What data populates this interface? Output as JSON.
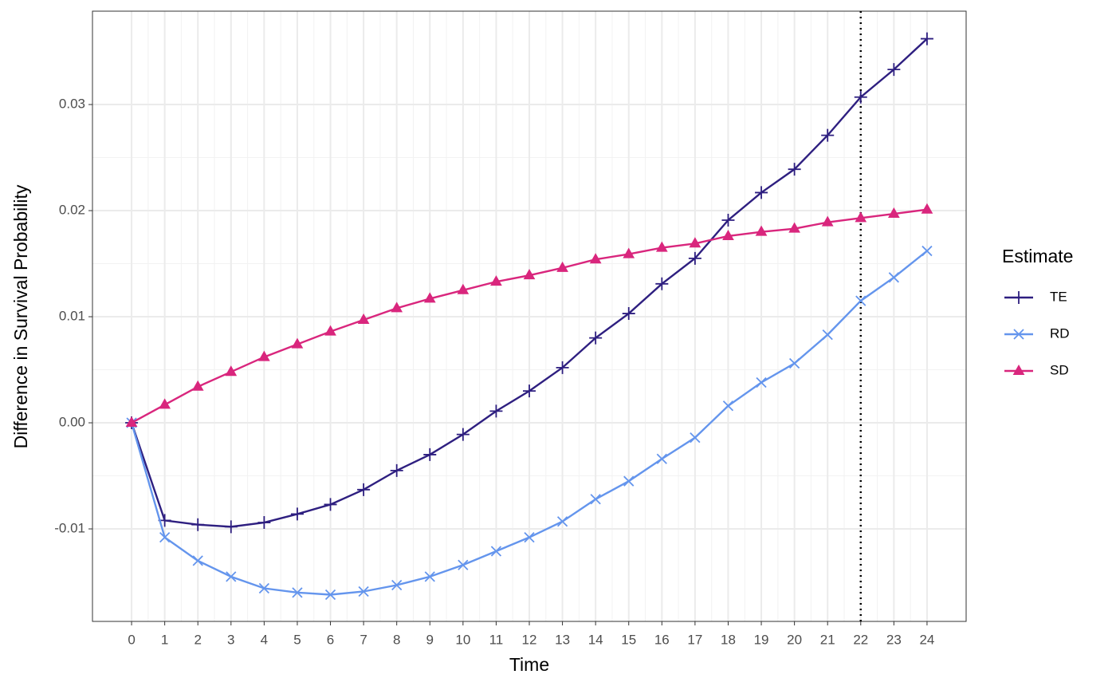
{
  "chart_data": {
    "type": "line",
    "x_label": "Time",
    "y_label": "Difference in Survival Probability",
    "x": [
      0,
      1,
      2,
      3,
      4,
      5,
      6,
      7,
      8,
      9,
      10,
      11,
      12,
      13,
      14,
      15,
      16,
      17,
      18,
      19,
      20,
      21,
      22,
      23,
      24
    ],
    "series": [
      {
        "name": "TE",
        "color": "#2e1f80",
        "shape": "plus",
        "values": [
          0,
          -0.0092,
          -0.0096,
          -0.0098,
          -0.0094,
          -0.0086,
          -0.0077,
          -0.0063,
          -0.0045,
          -0.003,
          -0.0011,
          0.0011,
          0.003,
          0.0052,
          0.008,
          0.0103,
          0.0131,
          0.0155,
          0.0191,
          0.0217,
          0.0239,
          0.0271,
          0.0307,
          0.0333,
          0.0362
        ]
      },
      {
        "name": "RD",
        "color": "#6495ed",
        "shape": "cross",
        "values": [
          0,
          -0.0108,
          -0.013,
          -0.0145,
          -0.0156,
          -0.016,
          -0.0162,
          -0.0159,
          -0.0153,
          -0.0145,
          -0.0134,
          -0.0121,
          -0.0108,
          -0.0093,
          -0.0072,
          -0.0055,
          -0.0034,
          -0.0014,
          0.0016,
          0.0038,
          0.0056,
          0.0083,
          0.0115,
          0.0137,
          0.0162
        ]
      },
      {
        "name": "SD",
        "color": "#d9267d",
        "shape": "triangle",
        "values": [
          0,
          0.0017,
          0.0034,
          0.0048,
          0.0062,
          0.0074,
          0.0086,
          0.0097,
          0.0108,
          0.0117,
          0.0125,
          0.0133,
          0.0139,
          0.0146,
          0.0154,
          0.0159,
          0.0165,
          0.0169,
          0.0176,
          0.018,
          0.0183,
          0.0189,
          0.0193,
          0.0197,
          0.0201
        ]
      }
    ],
    "xlim": [
      -1.18,
      25.18
    ],
    "xticks": [
      0,
      1,
      2,
      3,
      4,
      5,
      6,
      7,
      8,
      9,
      10,
      11,
      12,
      13,
      14,
      15,
      16,
      17,
      18,
      19,
      20,
      21,
      22,
      23,
      24
    ],
    "ylim": [
      -0.01872,
      0.0388
    ],
    "yticks": [
      -0.01,
      {
        "value": 0,
        "label": "0.00"
      },
      0.01,
      0.02,
      0.03
    ],
    "vline": 22,
    "grid": true,
    "legend_title": "Estimate",
    "legend_position": "right"
  }
}
